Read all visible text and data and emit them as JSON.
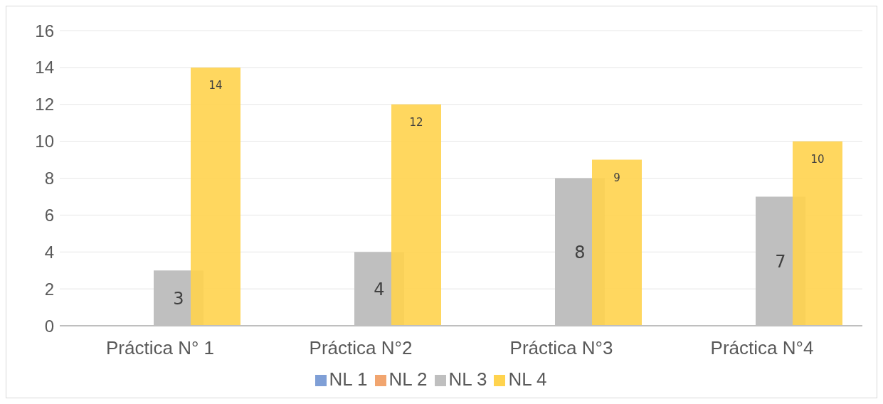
{
  "chart_data": {
    "type": "bar",
    "categories": [
      "Práctica N° 1",
      "Práctica N°2",
      "Práctica N°3",
      "Práctica N°4"
    ],
    "series": [
      {
        "name": "NL 1",
        "color": "#7f9fd6",
        "values": [
          0,
          0,
          0,
          0
        ]
      },
      {
        "name": "NL 2",
        "color": "#f1a56f",
        "values": [
          0,
          0,
          0,
          0
        ]
      },
      {
        "name": "NL 3",
        "color": "#bfbfbf",
        "values": [
          3,
          4,
          8,
          7
        ],
        "value_labels": [
          "3",
          "4",
          "8",
          "7"
        ]
      },
      {
        "name": "NL 4",
        "color": "#ffd34e",
        "values": [
          14,
          12,
          9,
          10
        ],
        "value_labels": [
          "14",
          "12",
          "9",
          "10"
        ]
      }
    ],
    "ylim": [
      0,
      16
    ],
    "yticks": [
      0,
      2,
      4,
      6,
      8,
      10,
      12,
      14,
      16
    ],
    "grid": "y",
    "legend": "bottom"
  }
}
